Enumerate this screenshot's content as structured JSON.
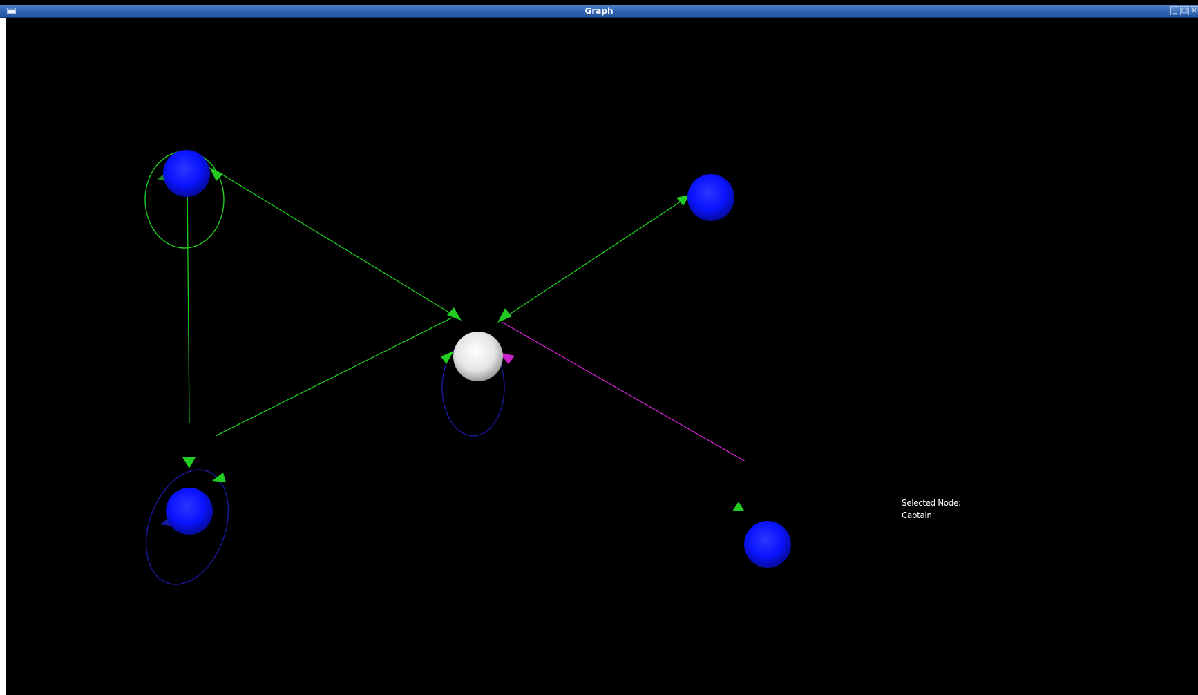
{
  "window": {
    "title": "Graph",
    "controls": {
      "minimize": "_",
      "maximize": "□",
      "close": "×"
    }
  },
  "info_panel": {
    "label": "Selected Node:",
    "value": "Captain"
  },
  "colors": {
    "background": "#000000",
    "node": "#0a14ff",
    "selected_node": "#e8e8e8",
    "edge_green": "#22cc22",
    "edge_blue": "#1a1aa0",
    "edge_magenta": "#cc22cc",
    "titlebar": "#2f63b0"
  },
  "graph": {
    "nodes": [
      {
        "id": "top-left",
        "selected": false
      },
      {
        "id": "top-right",
        "selected": false
      },
      {
        "id": "center",
        "selected": true
      },
      {
        "id": "bottom-left",
        "selected": false
      },
      {
        "id": "bottom-right",
        "selected": false
      }
    ],
    "edges": [
      {
        "from": "top-left",
        "to": "center",
        "color": "green",
        "bidirectional": true
      },
      {
        "from": "top-right",
        "to": "center",
        "color": "green",
        "bidirectional": true
      },
      {
        "from": "top-left",
        "to": "bottom-left",
        "color": "green",
        "bidirectional": true
      },
      {
        "from": "bottom-left",
        "to": "center",
        "color": "green",
        "bidirectional": true
      },
      {
        "from": "center",
        "to": "bottom-right",
        "color": "magenta",
        "bidirectional": true
      },
      {
        "from": "top-left",
        "to": "top-left",
        "color": "green",
        "self_loop": true
      },
      {
        "from": "center",
        "to": "center",
        "color": "blue",
        "self_loop": true
      },
      {
        "from": "bottom-left",
        "to": "bottom-left",
        "color": "blue",
        "self_loop": true
      }
    ]
  }
}
